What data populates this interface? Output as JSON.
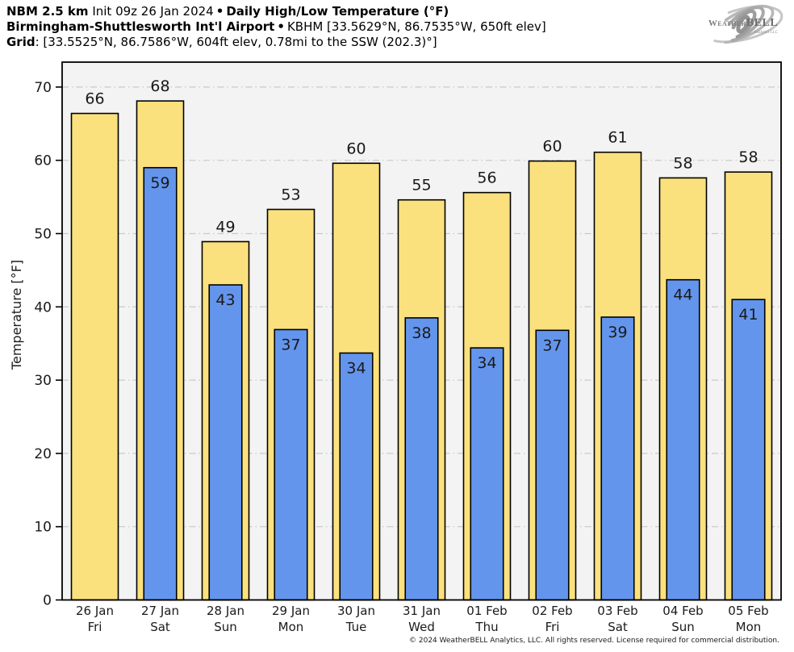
{
  "header": {
    "model": "NBM 2.5 km",
    "init": "Init 09z 26 Jan 2024",
    "separator": "•",
    "product": "Daily High/Low Temperature (°F)",
    "station_name": "Birmingham-Shuttlesworth Int'l Airport",
    "station_info": "KBHM [33.5629°N, 86.7535°W, 650ft elev]",
    "grid_label": "Grid",
    "grid_info": ": [33.5525°N, 86.7586°W, 604ft elev, 0.78mi to the SSW (202.3)°]"
  },
  "logo": {
    "part1": "Weather",
    "part2": "BELL",
    "sub": "Analytics LLC"
  },
  "chart_data": {
    "type": "bar",
    "title": "Daily High/Low Temperature (°F)",
    "xlabel": "",
    "ylabel": "Temperature [°F]",
    "yticks": [
      0,
      10,
      20,
      30,
      40,
      50,
      60,
      70
    ],
    "ylim": [
      0,
      73.4
    ],
    "grid": {
      "horizontal": true,
      "style": "dash-dot",
      "color": "#c9c9c9"
    },
    "plot_bg": "#f3f3f3",
    "legend": "none",
    "categories": [
      {
        "date": "26 Jan",
        "day": "Fri"
      },
      {
        "date": "27 Jan",
        "day": "Sat"
      },
      {
        "date": "28 Jan",
        "day": "Sun"
      },
      {
        "date": "29 Jan",
        "day": "Mon"
      },
      {
        "date": "30 Jan",
        "day": "Tue"
      },
      {
        "date": "31 Jan",
        "day": "Wed"
      },
      {
        "date": "01 Feb",
        "day": "Thu"
      },
      {
        "date": "02 Feb",
        "day": "Fri"
      },
      {
        "date": "03 Feb",
        "day": "Sat"
      },
      {
        "date": "04 Feb",
        "day": "Sun"
      },
      {
        "date": "05 Feb",
        "day": "Mon"
      }
    ],
    "series": [
      {
        "name": "Daily High",
        "color": "#FBE17E",
        "border": "#000000",
        "values": [
          66,
          68,
          49,
          53,
          60,
          55,
          56,
          60,
          61,
          58,
          58
        ],
        "bar_values": [
          66.4,
          68.1,
          48.9,
          53.3,
          59.6,
          54.6,
          55.6,
          59.9,
          61.1,
          57.6,
          58.4
        ]
      },
      {
        "name": "Daily Low",
        "color": "#6495ED",
        "border": "#000000",
        "values": [
          null,
          59,
          43,
          37,
          34,
          38,
          34,
          37,
          39,
          44,
          41
        ],
        "bar_values": [
          null,
          59.0,
          43.0,
          36.9,
          33.7,
          38.5,
          34.4,
          36.8,
          38.6,
          43.7,
          41.0
        ]
      }
    ]
  },
  "footer": {
    "copyright": "© 2024 WeatherBELL Analytics, LLC. All rights reserved. License required for commercial distribution."
  }
}
